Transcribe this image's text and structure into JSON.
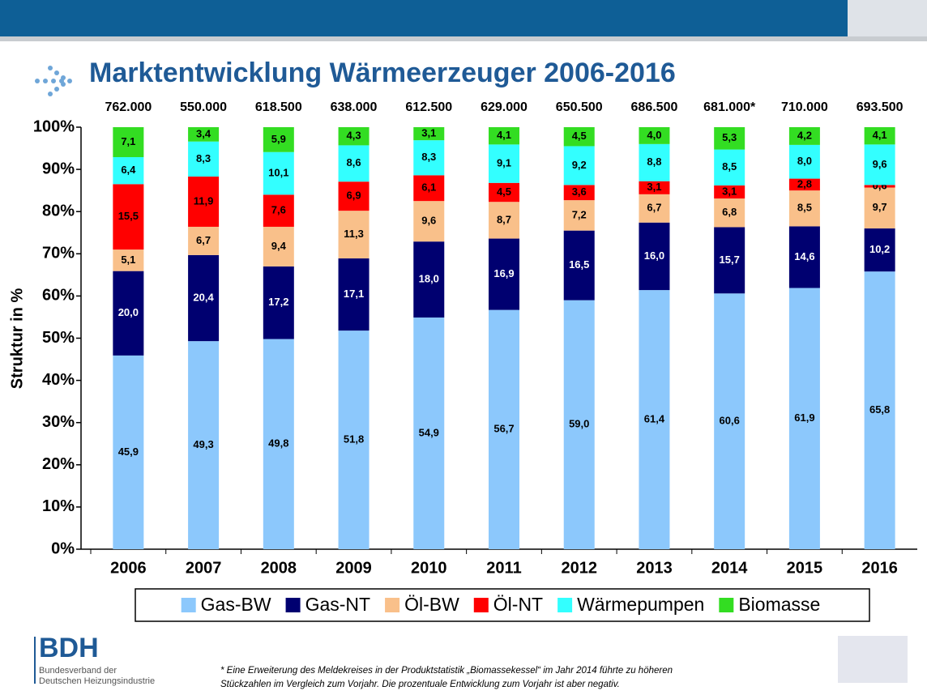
{
  "chart_data": {
    "type": "stacked_bar",
    "title": "Marktentwicklung Wärmeerzeuger 2006-2016",
    "ylabel": "Struktur in %",
    "categories": [
      "2006",
      "2007",
      "2008",
      "2009",
      "2010",
      "2011",
      "2012",
      "2013",
      "2014",
      "2015",
      "2016"
    ],
    "totals": [
      {
        "value": 762000,
        "label": "762.000"
      },
      {
        "value": 550000,
        "label": "550.000"
      },
      {
        "value": 618500,
        "label": "618.500"
      },
      {
        "value": 638000,
        "label": "638.000"
      },
      {
        "value": 612500,
        "label": "612.500"
      },
      {
        "value": 629000,
        "label": "629.000"
      },
      {
        "value": 650500,
        "label": "650.500"
      },
      {
        "value": 686500,
        "label": "686.500"
      },
      {
        "value": 681000,
        "label": "681.000*"
      },
      {
        "value": 710000,
        "label": "710.000"
      },
      {
        "value": 693500,
        "label": "693.500"
      }
    ],
    "series": [
      {
        "name": "Gas-BW",
        "color": "#8cc8fc",
        "label_color": "#000000",
        "values": [
          45.9,
          49.3,
          49.8,
          51.8,
          54.9,
          56.7,
          59.0,
          61.4,
          60.6,
          61.9,
          65.8
        ],
        "value_labels": [
          "45,9",
          "49,3",
          "49,8",
          "51,8",
          "54,9",
          "56,7",
          "59,0",
          "61,4",
          "60,6",
          "61,9",
          "65,8"
        ]
      },
      {
        "name": "Gas-NT",
        "color": "#000070",
        "label_color": "#ffffff",
        "values": [
          20.0,
          20.4,
          17.2,
          17.1,
          18.0,
          16.9,
          16.5,
          16.0,
          15.7,
          14.6,
          10.2
        ],
        "value_labels": [
          "20,0",
          "20,4",
          "17,2",
          "17,1",
          "18,0",
          "16,9",
          "16,5",
          "16,0",
          "15,7",
          "14,6",
          "10,2"
        ]
      },
      {
        "name": "Öl-BW",
        "color": "#f9c08a",
        "label_color": "#000000",
        "values": [
          5.1,
          6.7,
          9.4,
          11.3,
          9.6,
          8.7,
          7.2,
          6.7,
          6.8,
          8.5,
          9.7
        ],
        "value_labels": [
          "5,1",
          "6,7",
          "9,4",
          "11,3",
          "9,6",
          "8,7",
          "7,2",
          "6,7",
          "6,8",
          "8,5",
          "9,7"
        ]
      },
      {
        "name": "Öl-NT",
        "color": "#ff0000",
        "label_color": "#000000",
        "values": [
          15.5,
          11.9,
          7.6,
          6.9,
          6.1,
          4.5,
          3.6,
          3.1,
          3.1,
          2.8,
          0.6
        ],
        "value_labels": [
          "15,5",
          "11,9",
          "7,6",
          "6,9",
          "6,1",
          "4,5",
          "3,6",
          "3,1",
          "3,1",
          "2,8",
          "0,6"
        ]
      },
      {
        "name": "Wärmepumpen",
        "color": "#33ffff",
        "label_color": "#000000",
        "values": [
          6.4,
          8.3,
          10.1,
          8.6,
          8.3,
          9.1,
          9.2,
          8.8,
          8.5,
          8.0,
          9.6
        ],
        "value_labels": [
          "6,4",
          "8,3",
          "10,1",
          "8,6",
          "8,3",
          "9,1",
          "9,2",
          "8,8",
          "8,5",
          "8,0",
          "9,6"
        ]
      },
      {
        "name": "Biomasse",
        "color": "#33dd22",
        "label_color": "#000000",
        "values": [
          7.1,
          3.4,
          5.9,
          4.3,
          3.1,
          4.1,
          4.5,
          4.0,
          5.3,
          4.2,
          4.1
        ],
        "value_labels": [
          "7,1",
          "3,4",
          "5,9",
          "4,3",
          "3,1",
          "4,1",
          "4,5",
          "4,0",
          "5,3",
          "4,2",
          "4,1"
        ]
      }
    ],
    "ylim": [
      0,
      100
    ],
    "yticks": [
      {
        "value": 0,
        "label": "0%"
      },
      {
        "value": 10,
        "label": "10%"
      },
      {
        "value": 20,
        "label": "20%"
      },
      {
        "value": 30,
        "label": "30%"
      },
      {
        "value": 40,
        "label": "40%"
      },
      {
        "value": 50,
        "label": "50%"
      },
      {
        "value": 60,
        "label": "60%"
      },
      {
        "value": 70,
        "label": "70%"
      },
      {
        "value": 80,
        "label": "80%"
      },
      {
        "value": 90,
        "label": "90%"
      },
      {
        "value": 100,
        "label": "100%"
      }
    ],
    "legend": "bottom",
    "footnote": [
      "* Eine Erweiterung des Meldekreises in der Produktstatistik „Biomassekessel“ im Jahr 2014 führte zu höheren",
      "Stückzahlen im Vergleich zum Vorjahr. Die prozentuale Entwicklung zum Vorjahr ist aber negativ."
    ]
  },
  "logo": {
    "name": "BDH",
    "line1": "Bundesverband der",
    "line2": "Deutschen Heizungsindustrie"
  }
}
